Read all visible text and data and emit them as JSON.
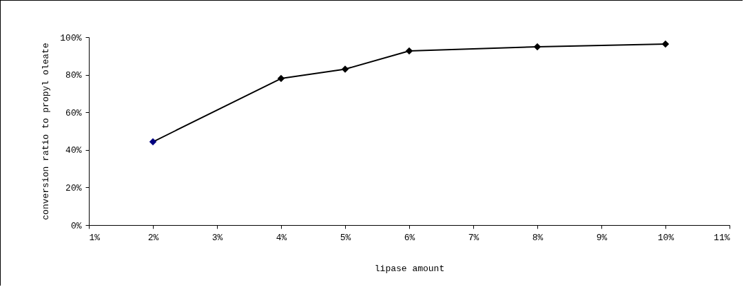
{
  "chart_data": {
    "type": "line",
    "xlabel": "lipase amount",
    "ylabel": "conversion ratio to propyl oleate",
    "x": [
      2,
      4,
      5,
      6,
      8,
      10
    ],
    "series": [
      {
        "color": "#000000",
        "colors": [
          "#000080",
          "#000000",
          "#000000",
          "#000000",
          "#000000",
          "#000000"
        ],
        "values": [
          44.3,
          78,
          83,
          92.7,
          94.9,
          96.3
        ]
      }
    ],
    "xlim": [
      1,
      11
    ],
    "xticks": [
      {
        "value": 1,
        "label": "1%"
      },
      {
        "value": 2,
        "label": "2%"
      },
      {
        "value": 3,
        "label": "3%"
      },
      {
        "value": 4,
        "label": "4%"
      },
      {
        "value": 5,
        "label": "5%"
      },
      {
        "value": 6,
        "label": "6%"
      },
      {
        "value": 7,
        "label": "7%"
      },
      {
        "value": 8,
        "label": "8%"
      },
      {
        "value": 9,
        "label": "9%"
      },
      {
        "value": 10,
        "label": "10%"
      },
      {
        "value": 11,
        "label": "11%"
      }
    ],
    "ylim": [
      0,
      100
    ],
    "yticks": [
      {
        "value": 0,
        "label": "0%"
      },
      {
        "value": 20,
        "label": "20%"
      },
      {
        "value": 40,
        "label": "40%"
      },
      {
        "value": 60,
        "label": "60%"
      },
      {
        "value": 80,
        "label": "80%"
      },
      {
        "value": 100,
        "label": "100%"
      }
    ],
    "grid": false,
    "marker": "diamond",
    "line_style": "solid"
  }
}
